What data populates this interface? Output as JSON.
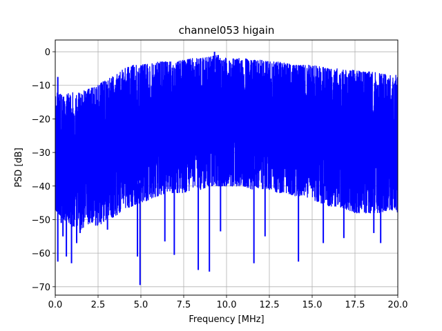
{
  "chart_data": {
    "type": "line",
    "title": "channel053 higain",
    "xlabel": "Frequency [MHz]",
    "ylabel": "PSD [dB]",
    "xlim": [
      0,
      20
    ],
    "ylim": [
      -72.5,
      3.5
    ],
    "grid": true,
    "series_color": "#0000ff",
    "x_ticks": [
      0,
      2.5,
      5,
      7.5,
      10,
      12.5,
      15,
      17.5,
      20
    ],
    "x_tick_labels": [
      "0.0",
      "2.5",
      "5.0",
      "7.5",
      "10.0",
      "12.5",
      "15.0",
      "17.5",
      "20.0"
    ],
    "y_ticks": [
      0,
      -10,
      -20,
      -30,
      -40,
      -50,
      -60,
      -70
    ],
    "y_tick_labels": [
      "0",
      "−10",
      "−20",
      "−30",
      "−40",
      "−50",
      "−60",
      "−70"
    ],
    "series": [
      {
        "x": [
          0.0,
          0.5,
          1.0,
          1.5,
          2.0,
          2.5,
          3.0,
          3.5,
          4.0,
          4.5,
          5.0,
          5.5,
          6.0,
          6.5,
          7.0,
          7.5,
          8.0,
          8.5,
          9.0,
          9.5,
          10.0,
          10.5,
          11.0,
          11.5,
          12.0,
          12.5,
          13.0,
          13.5,
          14.0,
          14.5,
          15.0,
          15.5,
          16.0,
          16.5,
          17.0,
          17.5,
          18.0,
          18.5,
          19.0,
          19.5,
          20.0
        ],
        "upper": [
          -12,
          -13,
          -12,
          -12,
          -11,
          -10,
          -8,
          -7,
          -5,
          -4,
          -4,
          -3.5,
          -3,
          -3,
          -3,
          -2.5,
          -2,
          -2,
          -1.5,
          -1,
          -2,
          -2,
          -2,
          -2.5,
          -2.5,
          -3,
          -3,
          -3.5,
          -4,
          -4,
          -4,
          -4.5,
          -5,
          -5,
          -5.5,
          -5.5,
          -6,
          -6,
          -6.5,
          -7,
          -7
        ],
        "lower": [
          -47,
          -50,
          -52,
          -53,
          -51,
          -52,
          -50,
          -49,
          -47,
          -46,
          -45,
          -44,
          -43,
          -42,
          -42,
          -42,
          -41,
          -41,
          -40,
          -40,
          -40,
          -40,
          -40,
          -41,
          -41,
          -41,
          -42,
          -42,
          -43,
          -43,
          -44,
          -45,
          -46,
          -46,
          -47,
          -48,
          -48,
          -48,
          -48,
          -47,
          -48
        ],
        "spikes": [
          {
            "x": 0.15,
            "y": -62.5
          },
          {
            "x": 0.35,
            "y": -51
          },
          {
            "x": 0.45,
            "y": -55
          },
          {
            "x": 0.65,
            "y": -61
          },
          {
            "x": 0.95,
            "y": -63
          },
          {
            "x": 1.25,
            "y": -57
          },
          {
            "x": 1.45,
            "y": -54
          },
          {
            "x": 3.05,
            "y": -53
          },
          {
            "x": 4.8,
            "y": -61
          },
          {
            "x": 4.95,
            "y": -69.5
          },
          {
            "x": 6.4,
            "y": -56.5
          },
          {
            "x": 6.95,
            "y": -60.5
          },
          {
            "x": 8.35,
            "y": -65
          },
          {
            "x": 9.0,
            "y": -65.5
          },
          {
            "x": 9.65,
            "y": -53.5
          },
          {
            "x": 11.6,
            "y": -63
          },
          {
            "x": 12.25,
            "y": -55
          },
          {
            "x": 14.2,
            "y": -62.5
          },
          {
            "x": 15.65,
            "y": -57
          },
          {
            "x": 16.85,
            "y": -55.5
          },
          {
            "x": 18.6,
            "y": -54
          },
          {
            "x": 19.0,
            "y": -57
          }
        ],
        "peaks": [
          {
            "x": 0.15,
            "y": -7.5
          },
          {
            "x": 9.3,
            "y": 0
          }
        ]
      }
    ]
  }
}
